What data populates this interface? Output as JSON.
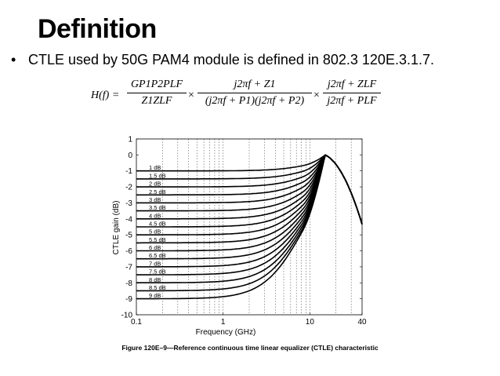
{
  "slide": {
    "title": "Definition",
    "bullet": "CTLE used by 50G PAM4 module is defined in 802.3 120E.3.1.7.",
    "bullet_icon": "bullet-dot"
  },
  "formula": {
    "lhs": "H(f) =",
    "f1_num": "GP1P2PLF",
    "f1_den": "Z1ZLF",
    "times": "×",
    "f2_num": "j2πf + Z1",
    "f2_den": "(j2πf + P1)(j2πf + P2)",
    "f3_num": "j2πf + ZLF",
    "f3_den": "j2πf + PLF"
  },
  "caption": "Figure 120E–9—Reference continuous time linear equalizer (CTLE) characteristic",
  "chart_data": {
    "type": "line",
    "xlabel": "Frequency (GHz)",
    "ylabel": "CTLE gain (dB)",
    "xscale": "log",
    "xlim": [
      0.1,
      40
    ],
    "ylim": [
      -10,
      1
    ],
    "xticks": [
      0.1,
      1,
      10,
      40
    ],
    "xtick_labels": [
      "0.1",
      "1",
      "10",
      "40"
    ],
    "yticks": [
      1,
      0,
      -1,
      -2,
      -3,
      -4,
      -5,
      -6,
      -7,
      -8,
      -9,
      -10
    ],
    "grid": "vertical dotted",
    "peak_frequency_ghz": 15,
    "series": [
      {
        "name": "1 dB",
        "dc_gain": -1.0
      },
      {
        "name": "1.5 dB",
        "dc_gain": -1.5
      },
      {
        "name": "2 dB",
        "dc_gain": -2.0
      },
      {
        "name": "2.5 dB",
        "dc_gain": -2.5
      },
      {
        "name": "3 dB",
        "dc_gain": -3.0
      },
      {
        "name": "3.5 dB",
        "dc_gain": -3.5
      },
      {
        "name": "4 dB",
        "dc_gain": -4.0
      },
      {
        "name": "4.5 dB",
        "dc_gain": -4.5
      },
      {
        "name": "5 dB",
        "dc_gain": -5.0
      },
      {
        "name": "5.5 dB",
        "dc_gain": -5.5
      },
      {
        "name": "6 dB",
        "dc_gain": -6.0
      },
      {
        "name": "6.5 dB",
        "dc_gain": -6.5
      },
      {
        "name": "7 dB",
        "dc_gain": -7.0
      },
      {
        "name": "7.5 dB",
        "dc_gain": -7.5
      },
      {
        "name": "8 dB",
        "dc_gain": -8.0
      },
      {
        "name": "8.5 dB",
        "dc_gain": -8.5
      },
      {
        "name": "9 dB",
        "dc_gain": -9.0
      }
    ]
  }
}
